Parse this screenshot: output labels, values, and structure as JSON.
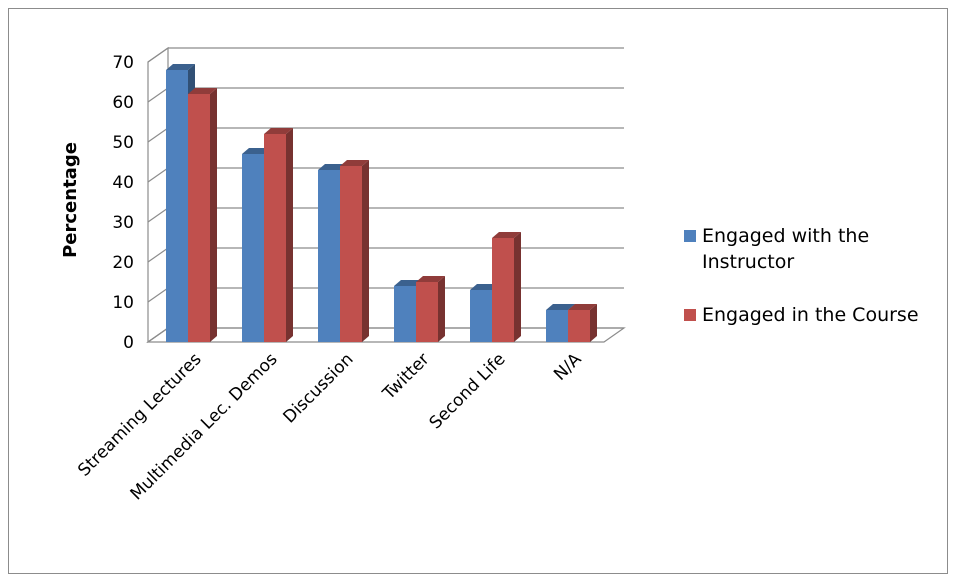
{
  "chart_data": {
    "type": "bar",
    "style": "3d-clustered-column",
    "categories": [
      "Streaming Lectures",
      "Multimedia Lec. Demos",
      "Discussion",
      "Twitter",
      "Second Life",
      "N/A"
    ],
    "series": [
      {
        "name": "Engaged with the Instructor",
        "color": "#4F81BD",
        "values": [
          68,
          47,
          43,
          14,
          13,
          8
        ]
      },
      {
        "name": "Engaged in the Course",
        "color": "#C0504D",
        "values": [
          62,
          52,
          44,
          15,
          26,
          8
        ]
      }
    ],
    "title": "",
    "xlabel": "",
    "ylabel": "Percentage",
    "ylim": [
      0,
      70
    ],
    "yticks": [
      0,
      10,
      20,
      30,
      40,
      50,
      60,
      70
    ],
    "grid": true,
    "legend_position": "right"
  }
}
